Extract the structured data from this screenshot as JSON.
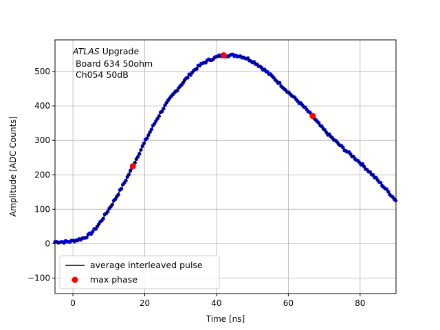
{
  "chart_data": {
    "type": "scatter",
    "xlabel": "Time [ns]",
    "ylabel": "Amplitude [ADC Counts]",
    "xlim": [
      -5,
      90
    ],
    "ylim": [
      -145,
      592
    ],
    "xticks": [
      0,
      20,
      40,
      60,
      80
    ],
    "yticks": [
      -100,
      0,
      100,
      200,
      300,
      400,
      500
    ],
    "xtick_labels": [
      "0",
      "20",
      "40",
      "60",
      "80"
    ],
    "ytick_labels": [
      "−100",
      "0",
      "100",
      "200",
      "300",
      "400",
      "500"
    ],
    "grid": true,
    "annotation": {
      "line1_italic": "ATLAS",
      "line1_rest": " Upgrade",
      "line2": " Board 634 50ohm",
      "line3": " Ch054 50dB"
    },
    "legend": {
      "placement": "lower-left",
      "entries": [
        "average interleaved pulse",
        "max phase"
      ]
    },
    "pulse_points": [
      [
        -5,
        5
      ],
      [
        0,
        8
      ],
      [
        5,
        30
      ],
      [
        10,
        100
      ],
      [
        15,
        190
      ],
      [
        20,
        295
      ],
      [
        25,
        390
      ],
      [
        30,
        460
      ],
      [
        35,
        515
      ],
      [
        40,
        542
      ],
      [
        42,
        547
      ],
      [
        45,
        547
      ],
      [
        50,
        530
      ],
      [
        55,
        490
      ],
      [
        60,
        440
      ],
      [
        65,
        390
      ],
      [
        70,
        330
      ],
      [
        75,
        280
      ],
      [
        80,
        235
      ],
      [
        85,
        183
      ],
      [
        90,
        125
      ]
    ],
    "max_phase_points": [
      [
        16.7,
        225
      ],
      [
        42,
        547
      ],
      [
        66.8,
        371
      ]
    ],
    "colors": {
      "samples": "#0000ff",
      "average": "#000000",
      "max_phase": "#ff0000",
      "grid": "#b0b0b0"
    }
  }
}
